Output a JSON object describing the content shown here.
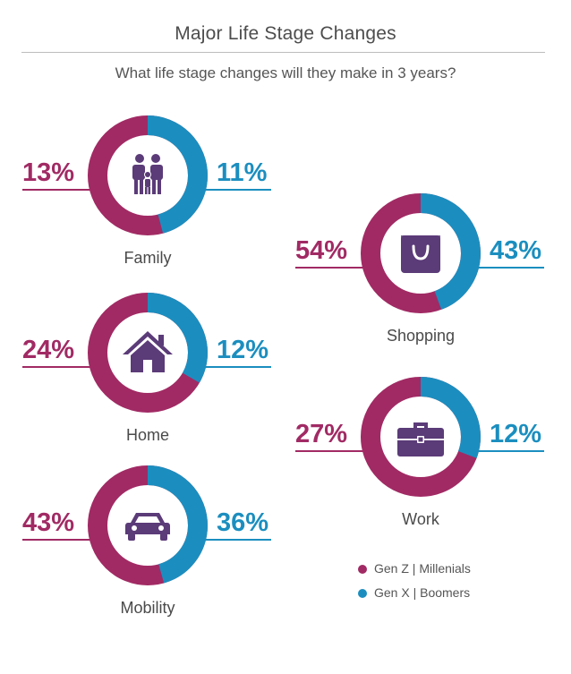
{
  "chart_data": {
    "type": "donut",
    "title": "Major Life Stage Changes",
    "subtitle": "What life stage changes will they make in 3 years?",
    "colors": {
      "gen_z_millenials": "#a12a64",
      "gen_x_boomers": "#1b8ebf",
      "icon": "#5b3b78"
    },
    "legend": [
      {
        "label": "Gen Z  |  Millenials",
        "color": "#a12a64"
      },
      {
        "label": "Gen X  |  Boomers",
        "color": "#1b8ebf"
      }
    ],
    "charts": [
      {
        "category": "Family",
        "icon": "family-icon",
        "left_text": "13%",
        "right_text": "11%",
        "gen_z_millenials": 13,
        "gen_x_boomers": 11
      },
      {
        "category": "Home",
        "icon": "house-icon",
        "left_text": "24%",
        "right_text": "12%",
        "gen_z_millenials": 24,
        "gen_x_boomers": 12
      },
      {
        "category": "Mobility",
        "icon": "car-icon",
        "left_text": "43%",
        "right_text": "36%",
        "gen_z_millenials": 43,
        "gen_x_boomers": 36
      },
      {
        "category": "Shopping",
        "icon": "shopping-bag-icon",
        "left_text": "54%",
        "right_text": "43%",
        "gen_z_millenials": 54,
        "gen_x_boomers": 43
      },
      {
        "category": "Work",
        "icon": "briefcase-icon",
        "left_text": "27%",
        "right_text": "12%",
        "gen_z_millenials": 27,
        "gen_x_boomers": 12
      }
    ]
  }
}
